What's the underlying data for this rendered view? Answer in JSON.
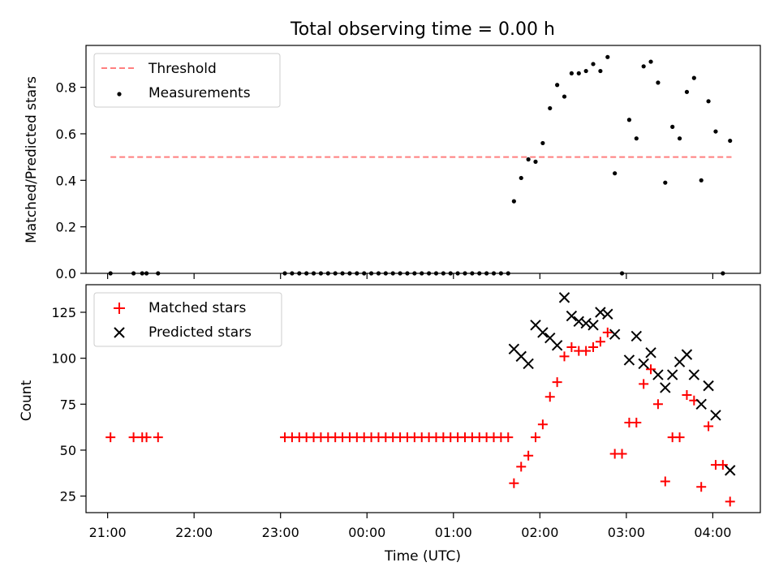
{
  "chart_data": [
    {
      "type": "scatter",
      "title": "Total observing time = 0.00 h",
      "ylabel": "Matched/Predicted stars",
      "xlabel": "",
      "xlim": [
        "20:45",
        "04:33"
      ],
      "ylim": [
        0,
        0.98
      ],
      "yticks": [
        0.0,
        0.2,
        0.4,
        0.6,
        0.8
      ],
      "ytick_labels": [
        "0.0",
        "0.2",
        "0.4",
        "0.6",
        "0.8"
      ],
      "legend": [
        "Threshold",
        "Measurements"
      ],
      "legend_position": "upper-left",
      "threshold": {
        "name": "Threshold",
        "value": 0.5,
        "x_start": "21:02",
        "x_end": "04:13",
        "color": "#ff7f7f",
        "style": "dashed"
      },
      "series": [
        {
          "name": "Measurements",
          "color": "#000000",
          "marker": "dot",
          "points": [
            [
              "21:02",
              0
            ],
            [
              "21:18",
              0
            ],
            [
              "21:24",
              0
            ],
            [
              "21:27",
              0
            ],
            [
              "21:35",
              0
            ],
            [
              "23:03",
              0
            ],
            [
              "23:08",
              0
            ],
            [
              "23:13",
              0
            ],
            [
              "23:18",
              0
            ],
            [
              "23:23",
              0
            ],
            [
              "23:28",
              0
            ],
            [
              "23:33",
              0
            ],
            [
              "23:38",
              0
            ],
            [
              "23:43",
              0
            ],
            [
              "23:48",
              0
            ],
            [
              "23:53",
              0
            ],
            [
              "23:58",
              0
            ],
            [
              "00:03",
              0
            ],
            [
              "00:08",
              0
            ],
            [
              "00:13",
              0
            ],
            [
              "00:18",
              0
            ],
            [
              "00:23",
              0
            ],
            [
              "00:28",
              0
            ],
            [
              "00:33",
              0
            ],
            [
              "00:38",
              0
            ],
            [
              "00:43",
              0
            ],
            [
              "00:48",
              0
            ],
            [
              "00:53",
              0
            ],
            [
              "00:58",
              0
            ],
            [
              "01:03",
              0
            ],
            [
              "01:08",
              0
            ],
            [
              "01:13",
              0
            ],
            [
              "01:18",
              0
            ],
            [
              "01:23",
              0
            ],
            [
              "01:28",
              0
            ],
            [
              "01:33",
              0
            ],
            [
              "01:38",
              0
            ],
            [
              "01:42",
              0.31
            ],
            [
              "01:47",
              0.41
            ],
            [
              "01:52",
              0.49
            ],
            [
              "01:57",
              0.48
            ],
            [
              "02:02",
              0.56
            ],
            [
              "02:07",
              0.71
            ],
            [
              "02:12",
              0.81
            ],
            [
              "02:17",
              0.76
            ],
            [
              "02:22",
              0.86
            ],
            [
              "02:27",
              0.86
            ],
            [
              "02:32",
              0.87
            ],
            [
              "02:37",
              0.9
            ],
            [
              "02:42",
              0.87
            ],
            [
              "02:47",
              0.93
            ],
            [
              "02:52",
              0.43
            ],
            [
              "02:57",
              0.0
            ],
            [
              "03:02",
              0.66
            ],
            [
              "03:07",
              0.58
            ],
            [
              "03:12",
              0.89
            ],
            [
              "03:17",
              0.91
            ],
            [
              "03:22",
              0.82
            ],
            [
              "03:27",
              0.39
            ],
            [
              "03:32",
              0.63
            ],
            [
              "03:37",
              0.58
            ],
            [
              "03:42",
              0.78
            ],
            [
              "03:47",
              0.84
            ],
            [
              "03:52",
              0.4
            ],
            [
              "03:57",
              0.74
            ],
            [
              "04:02",
              0.61
            ],
            [
              "04:07",
              0.0
            ],
            [
              "04:12",
              0.57
            ]
          ]
        }
      ]
    },
    {
      "type": "scatter",
      "title": "",
      "xlabel": "Time (UTC)",
      "ylabel": "Count",
      "xlim": [
        "20:45",
        "04:33"
      ],
      "ylim": [
        16,
        140
      ],
      "xticks": [
        "21:00",
        "22:00",
        "23:00",
        "00:00",
        "01:00",
        "02:00",
        "03:00",
        "04:00"
      ],
      "yticks": [
        25,
        50,
        75,
        100,
        125
      ],
      "ytick_labels": [
        "25",
        "50",
        "75",
        "100",
        "125"
      ],
      "legend": [
        "Matched stars",
        "Predicted stars"
      ],
      "legend_position": "upper-left",
      "series": [
        {
          "name": "Matched stars",
          "color": "#ff0000",
          "marker": "plus",
          "points": [
            [
              "21:02",
              57
            ],
            [
              "21:18",
              57
            ],
            [
              "21:24",
              57
            ],
            [
              "21:27",
              57
            ],
            [
              "21:35",
              57
            ],
            [
              "23:03",
              57
            ],
            [
              "23:08",
              57
            ],
            [
              "23:13",
              57
            ],
            [
              "23:18",
              57
            ],
            [
              "23:23",
              57
            ],
            [
              "23:28",
              57
            ],
            [
              "23:33",
              57
            ],
            [
              "23:38",
              57
            ],
            [
              "23:43",
              57
            ],
            [
              "23:48",
              57
            ],
            [
              "23:53",
              57
            ],
            [
              "23:58",
              57
            ],
            [
              "00:03",
              57
            ],
            [
              "00:08",
              57
            ],
            [
              "00:13",
              57
            ],
            [
              "00:18",
              57
            ],
            [
              "00:23",
              57
            ],
            [
              "00:28",
              57
            ],
            [
              "00:33",
              57
            ],
            [
              "00:38",
              57
            ],
            [
              "00:43",
              57
            ],
            [
              "00:48",
              57
            ],
            [
              "00:53",
              57
            ],
            [
              "00:58",
              57
            ],
            [
              "01:03",
              57
            ],
            [
              "01:08",
              57
            ],
            [
              "01:13",
              57
            ],
            [
              "01:18",
              57
            ],
            [
              "01:23",
              57
            ],
            [
              "01:28",
              57
            ],
            [
              "01:33",
              57
            ],
            [
              "01:38",
              57
            ],
            [
              "01:42",
              32
            ],
            [
              "01:47",
              41
            ],
            [
              "01:52",
              47
            ],
            [
              "01:57",
              57
            ],
            [
              "02:02",
              64
            ],
            [
              "02:07",
              79
            ],
            [
              "02:12",
              87
            ],
            [
              "02:17",
              101
            ],
            [
              "02:22",
              106
            ],
            [
              "02:27",
              104
            ],
            [
              "02:32",
              104
            ],
            [
              "02:37",
              106
            ],
            [
              "02:42",
              109
            ],
            [
              "02:47",
              114
            ],
            [
              "02:52",
              48
            ],
            [
              "02:57",
              48
            ],
            [
              "03:02",
              65
            ],
            [
              "03:07",
              65
            ],
            [
              "03:12",
              86
            ],
            [
              "03:17",
              94
            ],
            [
              "03:22",
              75
            ],
            [
              "03:27",
              33
            ],
            [
              "03:32",
              57
            ],
            [
              "03:37",
              57
            ],
            [
              "03:42",
              80
            ],
            [
              "03:47",
              77
            ],
            [
              "03:52",
              30
            ],
            [
              "03:57",
              63
            ],
            [
              "04:02",
              42
            ],
            [
              "04:07",
              42
            ],
            [
              "04:12",
              22
            ]
          ]
        },
        {
          "name": "Predicted stars",
          "color": "#000000",
          "marker": "x",
          "points": [
            [
              "01:42",
              105
            ],
            [
              "01:47",
              101
            ],
            [
              "01:52",
              97
            ],
            [
              "01:57",
              118
            ],
            [
              "02:02",
              114
            ],
            [
              "02:07",
              111
            ],
            [
              "02:12",
              107
            ],
            [
              "02:17",
              133
            ],
            [
              "02:22",
              123
            ],
            [
              "02:27",
              120
            ],
            [
              "02:32",
              119
            ],
            [
              "02:37",
              118
            ],
            [
              "02:42",
              125
            ],
            [
              "02:47",
              124
            ],
            [
              "02:52",
              113
            ],
            [
              "03:02",
              99
            ],
            [
              "03:07",
              112
            ],
            [
              "03:12",
              97
            ],
            [
              "03:17",
              103
            ],
            [
              "03:22",
              91
            ],
            [
              "03:27",
              84
            ],
            [
              "03:32",
              91
            ],
            [
              "03:37",
              98
            ],
            [
              "03:42",
              102
            ],
            [
              "03:47",
              91
            ],
            [
              "03:52",
              75
            ],
            [
              "03:57",
              85
            ],
            [
              "04:02",
              69
            ],
            [
              "04:12",
              39
            ]
          ]
        }
      ]
    }
  ]
}
